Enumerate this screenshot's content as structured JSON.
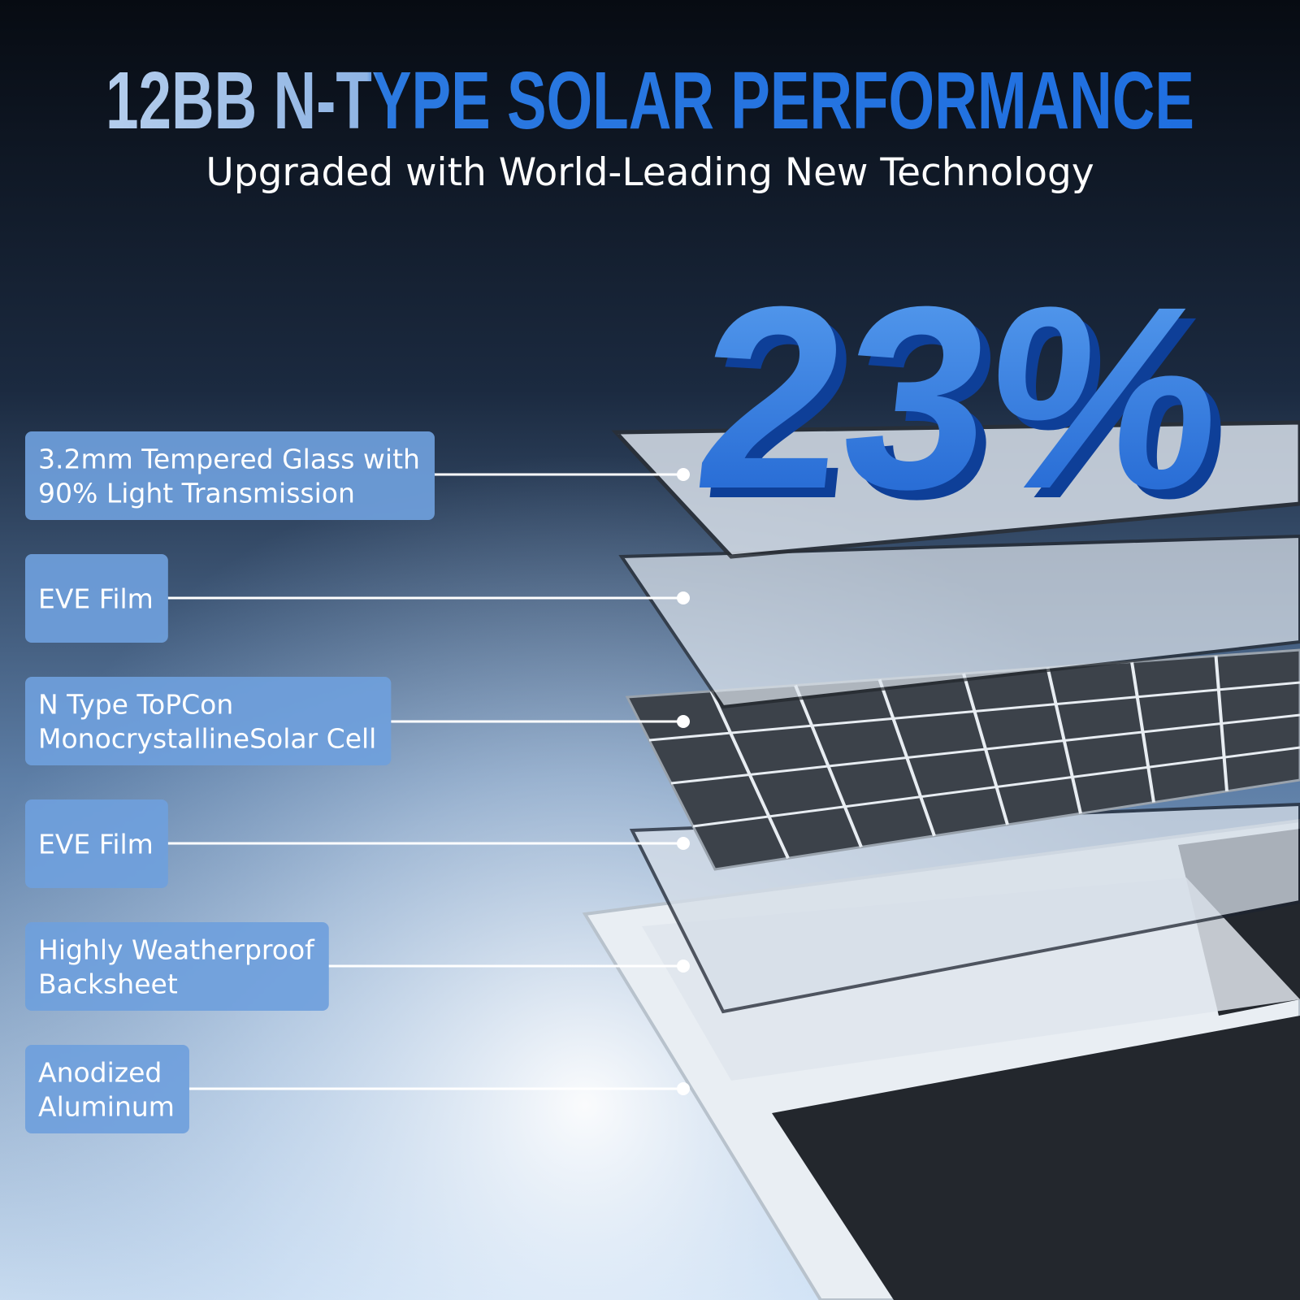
{
  "header": {
    "title": "12BB N-TYPE SOLAR PERFORMANCE",
    "subtitle": "Upgraded with World-Leading New Technology"
  },
  "highlight": "23%",
  "layers": [
    {
      "lines": [
        "3.2mm Tempered Glass with",
        "90% Light Transmission"
      ]
    },
    {
      "lines": [
        "EVE Film"
      ]
    },
    {
      "lines": [
        "N Type ToPCon",
        "MonocrystallineSolar Cell"
      ]
    },
    {
      "lines": [
        "EVE Film"
      ]
    },
    {
      "lines": [
        "Highly Weatherproof",
        "Backsheet"
      ]
    },
    {
      "lines": [
        "Anodized",
        "Aluminum"
      ]
    }
  ]
}
